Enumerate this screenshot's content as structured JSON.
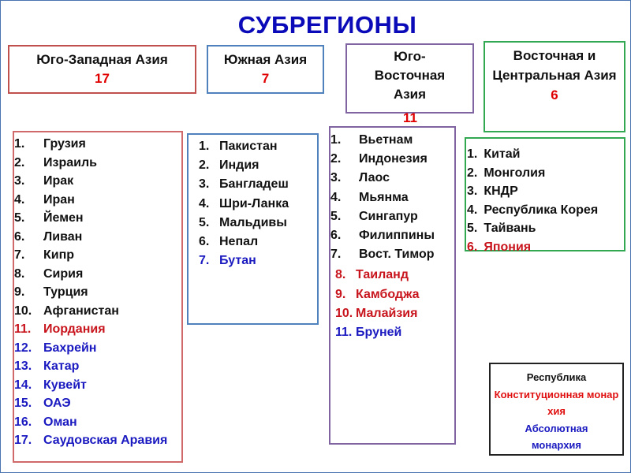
{
  "title": "СУБРЕГИОНЫ",
  "colors": {
    "frame": "#4a74b0",
    "title": "#0a0ab8",
    "count": "#e00000",
    "republic": "#111111",
    "constitutional": "#c8141c",
    "absolute": "#1a1ac0"
  },
  "regions": [
    {
      "name": "Юго-Западная Азия",
      "count": "17",
      "border": "#c0504d"
    },
    {
      "name": "Южная Азия",
      "count": "7",
      "border": "#4f81bd"
    },
    {
      "name": "Юго-Восточная Азия",
      "count": "11",
      "border": "#8064a2"
    },
    {
      "name": "Восточная и Центральная Азия",
      "count": "6",
      "border": "#33a852"
    }
  ],
  "lists": {
    "southwest": [
      {
        "n": "1.",
        "t": "Грузия",
        "c": ""
      },
      {
        "n": "2.",
        "t": "Израиль",
        "c": ""
      },
      {
        "n": "3.",
        "t": "Ирак",
        "c": ""
      },
      {
        "n": "4.",
        "t": "Иран",
        "c": ""
      },
      {
        "n": "5.",
        "t": "Йемен",
        "c": ""
      },
      {
        "n": "6.",
        "t": "Ливан",
        "c": ""
      },
      {
        "n": "7.",
        "t": "Кипр",
        "c": ""
      },
      {
        "n": "8.",
        "t": "Сирия",
        "c": ""
      },
      {
        "n": "9.",
        "t": "Турция",
        "c": ""
      },
      {
        "n": "10.",
        "t": "Афганистан",
        "c": ""
      },
      {
        "n": "11.",
        "t": "Иордания",
        "c": "red"
      },
      {
        "n": "12.",
        "t": "Бахрейн",
        "c": "blue"
      },
      {
        "n": "13.",
        "t": "Катар",
        "c": "blue"
      },
      {
        "n": "14.",
        "t": "Кувейт",
        "c": "blue"
      },
      {
        "n": "15.",
        "t": "ОАЭ",
        "c": "blue"
      },
      {
        "n": "16.",
        "t": "Оман",
        "c": "blue"
      },
      {
        "n": "17.",
        "t": "Саудовская Аравия",
        "c": "blue"
      }
    ],
    "south": [
      {
        "n": "1.",
        "t": "Пакистан",
        "c": ""
      },
      {
        "n": "2.",
        "t": "Индия",
        "c": ""
      },
      {
        "n": "3.",
        "t": "Бангладеш",
        "c": ""
      },
      {
        "n": "4.",
        "t": "Шри-Ланка",
        "c": ""
      },
      {
        "n": "5.",
        "t": "Мальдивы",
        "c": ""
      },
      {
        "n": "6.",
        "t": "Непал",
        "c": ""
      },
      {
        "n": "7.",
        "t": "Бутан",
        "c": "blue"
      }
    ],
    "southeast": [
      {
        "n": "1.",
        "t": "Вьетнам",
        "c": ""
      },
      {
        "n": "2.",
        "t": "Индонезия",
        "c": ""
      },
      {
        "n": "3.",
        "t": "Лаос",
        "c": ""
      },
      {
        "n": "4.",
        "t": "Мьянма",
        "c": ""
      },
      {
        "n": "5.",
        "t": "Сингапур",
        "c": ""
      },
      {
        "n": "6.",
        "t": "Филиппины",
        "c": ""
      },
      {
        "n": "7.",
        "t": "Вост. Тимор",
        "c": ""
      },
      {
        "n": "8.",
        "t": "Таиланд",
        "c": "red"
      },
      {
        "n": "9.",
        "t": "Камбоджа",
        "c": "red"
      },
      {
        "n": "10.",
        "t": "Малайзия",
        "c": "red"
      },
      {
        "n": "11.",
        "t": "Бруней",
        "c": "blue"
      }
    ],
    "east": [
      {
        "n": "1.",
        "t": "Китай",
        "c": ""
      },
      {
        "n": "2.",
        "t": "Монголия",
        "c": ""
      },
      {
        "n": "3.",
        "t": "КНДР",
        "c": ""
      },
      {
        "n": "4.",
        "t": "Республика Корея",
        "c": ""
      },
      {
        "n": "5.",
        "t": "Тайвань",
        "c": ""
      },
      {
        "n": "6.",
        "t": "Япония",
        "c": "red"
      }
    ]
  },
  "legend": {
    "republic": "Республика",
    "constitutional": "Конституционная монархия",
    "absolute": "Абсолютная монархия"
  }
}
